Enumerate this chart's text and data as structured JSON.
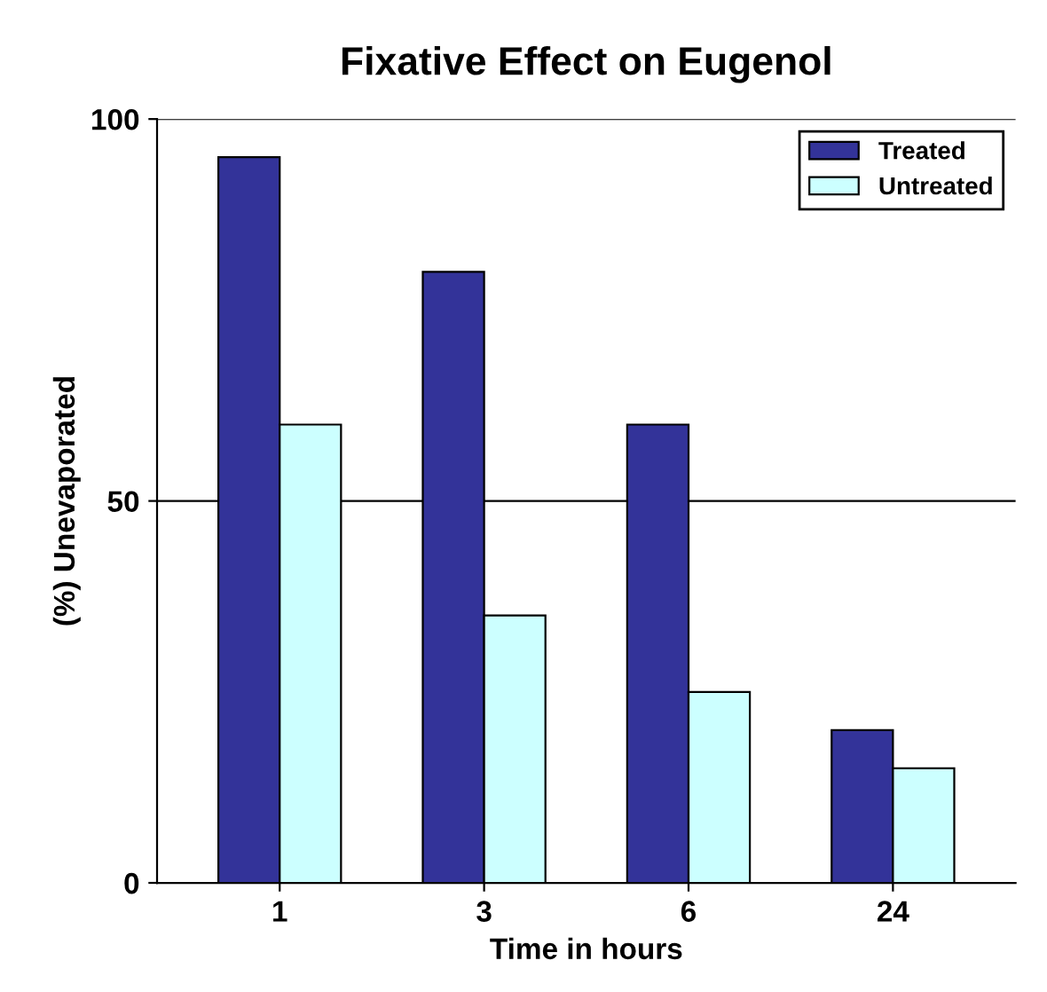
{
  "chart_data": {
    "type": "bar",
    "title": "Fixative Effect on Eugenol",
    "xlabel": "Time in hours",
    "ylabel": "(%) Unevaporated",
    "categories": [
      "1",
      "3",
      "6",
      "24"
    ],
    "series": [
      {
        "name": "Treated",
        "color": "#333399",
        "values": [
          95,
          80,
          60,
          20
        ]
      },
      {
        "name": "Untreated",
        "color": "#ccffff",
        "values": [
          60,
          35,
          25,
          15
        ]
      }
    ],
    "ylim": [
      0,
      100
    ],
    "yticks": [
      0,
      50,
      100
    ],
    "grid": "y",
    "legend": "top right"
  }
}
